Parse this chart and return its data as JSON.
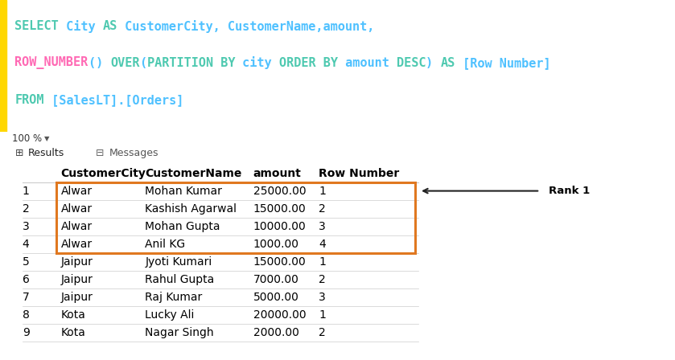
{
  "top_panel_bg": "#1e1e1e",
  "bottom_panel_bg": "#ffffff",
  "sql_lines": [
    {
      "tokens": [
        {
          "text": "SELECT",
          "color": "#4ec9b0"
        },
        {
          "text": " City ",
          "color": "#4fc1ff"
        },
        {
          "text": "AS",
          "color": "#4ec9b0"
        },
        {
          "text": " CustomerCity, CustomerName,amount,",
          "color": "#4fc1ff"
        }
      ]
    },
    {
      "tokens": [
        {
          "text": "ROW_NUMBER",
          "color": "#ff69b4"
        },
        {
          "text": "() ",
          "color": "#4fc1ff"
        },
        {
          "text": "OVER",
          "color": "#4ec9b0"
        },
        {
          "text": "(",
          "color": "#4fc1ff"
        },
        {
          "text": "PARTITION BY",
          "color": "#4ec9b0"
        },
        {
          "text": " city ",
          "color": "#4fc1ff"
        },
        {
          "text": "ORDER BY",
          "color": "#4ec9b0"
        },
        {
          "text": " amount ",
          "color": "#4fc1ff"
        },
        {
          "text": "DESC",
          "color": "#4ec9b0"
        },
        {
          "text": ") ",
          "color": "#4fc1ff"
        },
        {
          "text": "AS",
          "color": "#4ec9b0"
        },
        {
          "text": " [Row Number]",
          "color": "#4fc1ff"
        }
      ]
    },
    {
      "tokens": [
        {
          "text": "FROM",
          "color": "#4ec9b0"
        },
        {
          "text": " [SalesLT].[Orders]",
          "color": "#4fc1ff"
        }
      ]
    }
  ],
  "yellow_bar_color": "#ffd700",
  "status_bar_bg": "#c8c8c8",
  "status_text": "100 %",
  "tab_results": "Results",
  "tab_messages": "Messages",
  "tab_bg": "#e8e8e8",
  "tab_active_bg": "#ffffff",
  "headers": [
    "",
    "CustomerCity",
    "CustomerName",
    "amount",
    "Row Number"
  ],
  "rows": [
    [
      "1",
      "Alwar",
      "Mohan Kumar",
      "25000.00",
      "1"
    ],
    [
      "2",
      "Alwar",
      "Kashish Agarwal",
      "15000.00",
      "2"
    ],
    [
      "3",
      "Alwar",
      "Mohan Gupta",
      "10000.00",
      "3"
    ],
    [
      "4",
      "Alwar",
      "Anil KG",
      "1000.00",
      "4"
    ],
    [
      "5",
      "Jaipur",
      "Jyoti Kumari",
      "15000.00",
      "1"
    ],
    [
      "6",
      "Jaipur",
      "Rahul Gupta",
      "7000.00",
      "2"
    ],
    [
      "7",
      "Jaipur",
      "Raj Kumar",
      "5000.00",
      "3"
    ],
    [
      "8",
      "Kota",
      "Lucky Ali",
      "20000.00",
      "1"
    ],
    [
      "9",
      "Kota",
      "Nagar Singh",
      "2000.00",
      "2"
    ]
  ],
  "highlight_rows": [
    0,
    1,
    2,
    3
  ],
  "highlight_color": "#e07820",
  "grid_color": "#cccccc",
  "arrow_color": "#222222",
  "rank1_text": "Rank 1",
  "font_size_sql": 11,
  "font_size_table": 10
}
